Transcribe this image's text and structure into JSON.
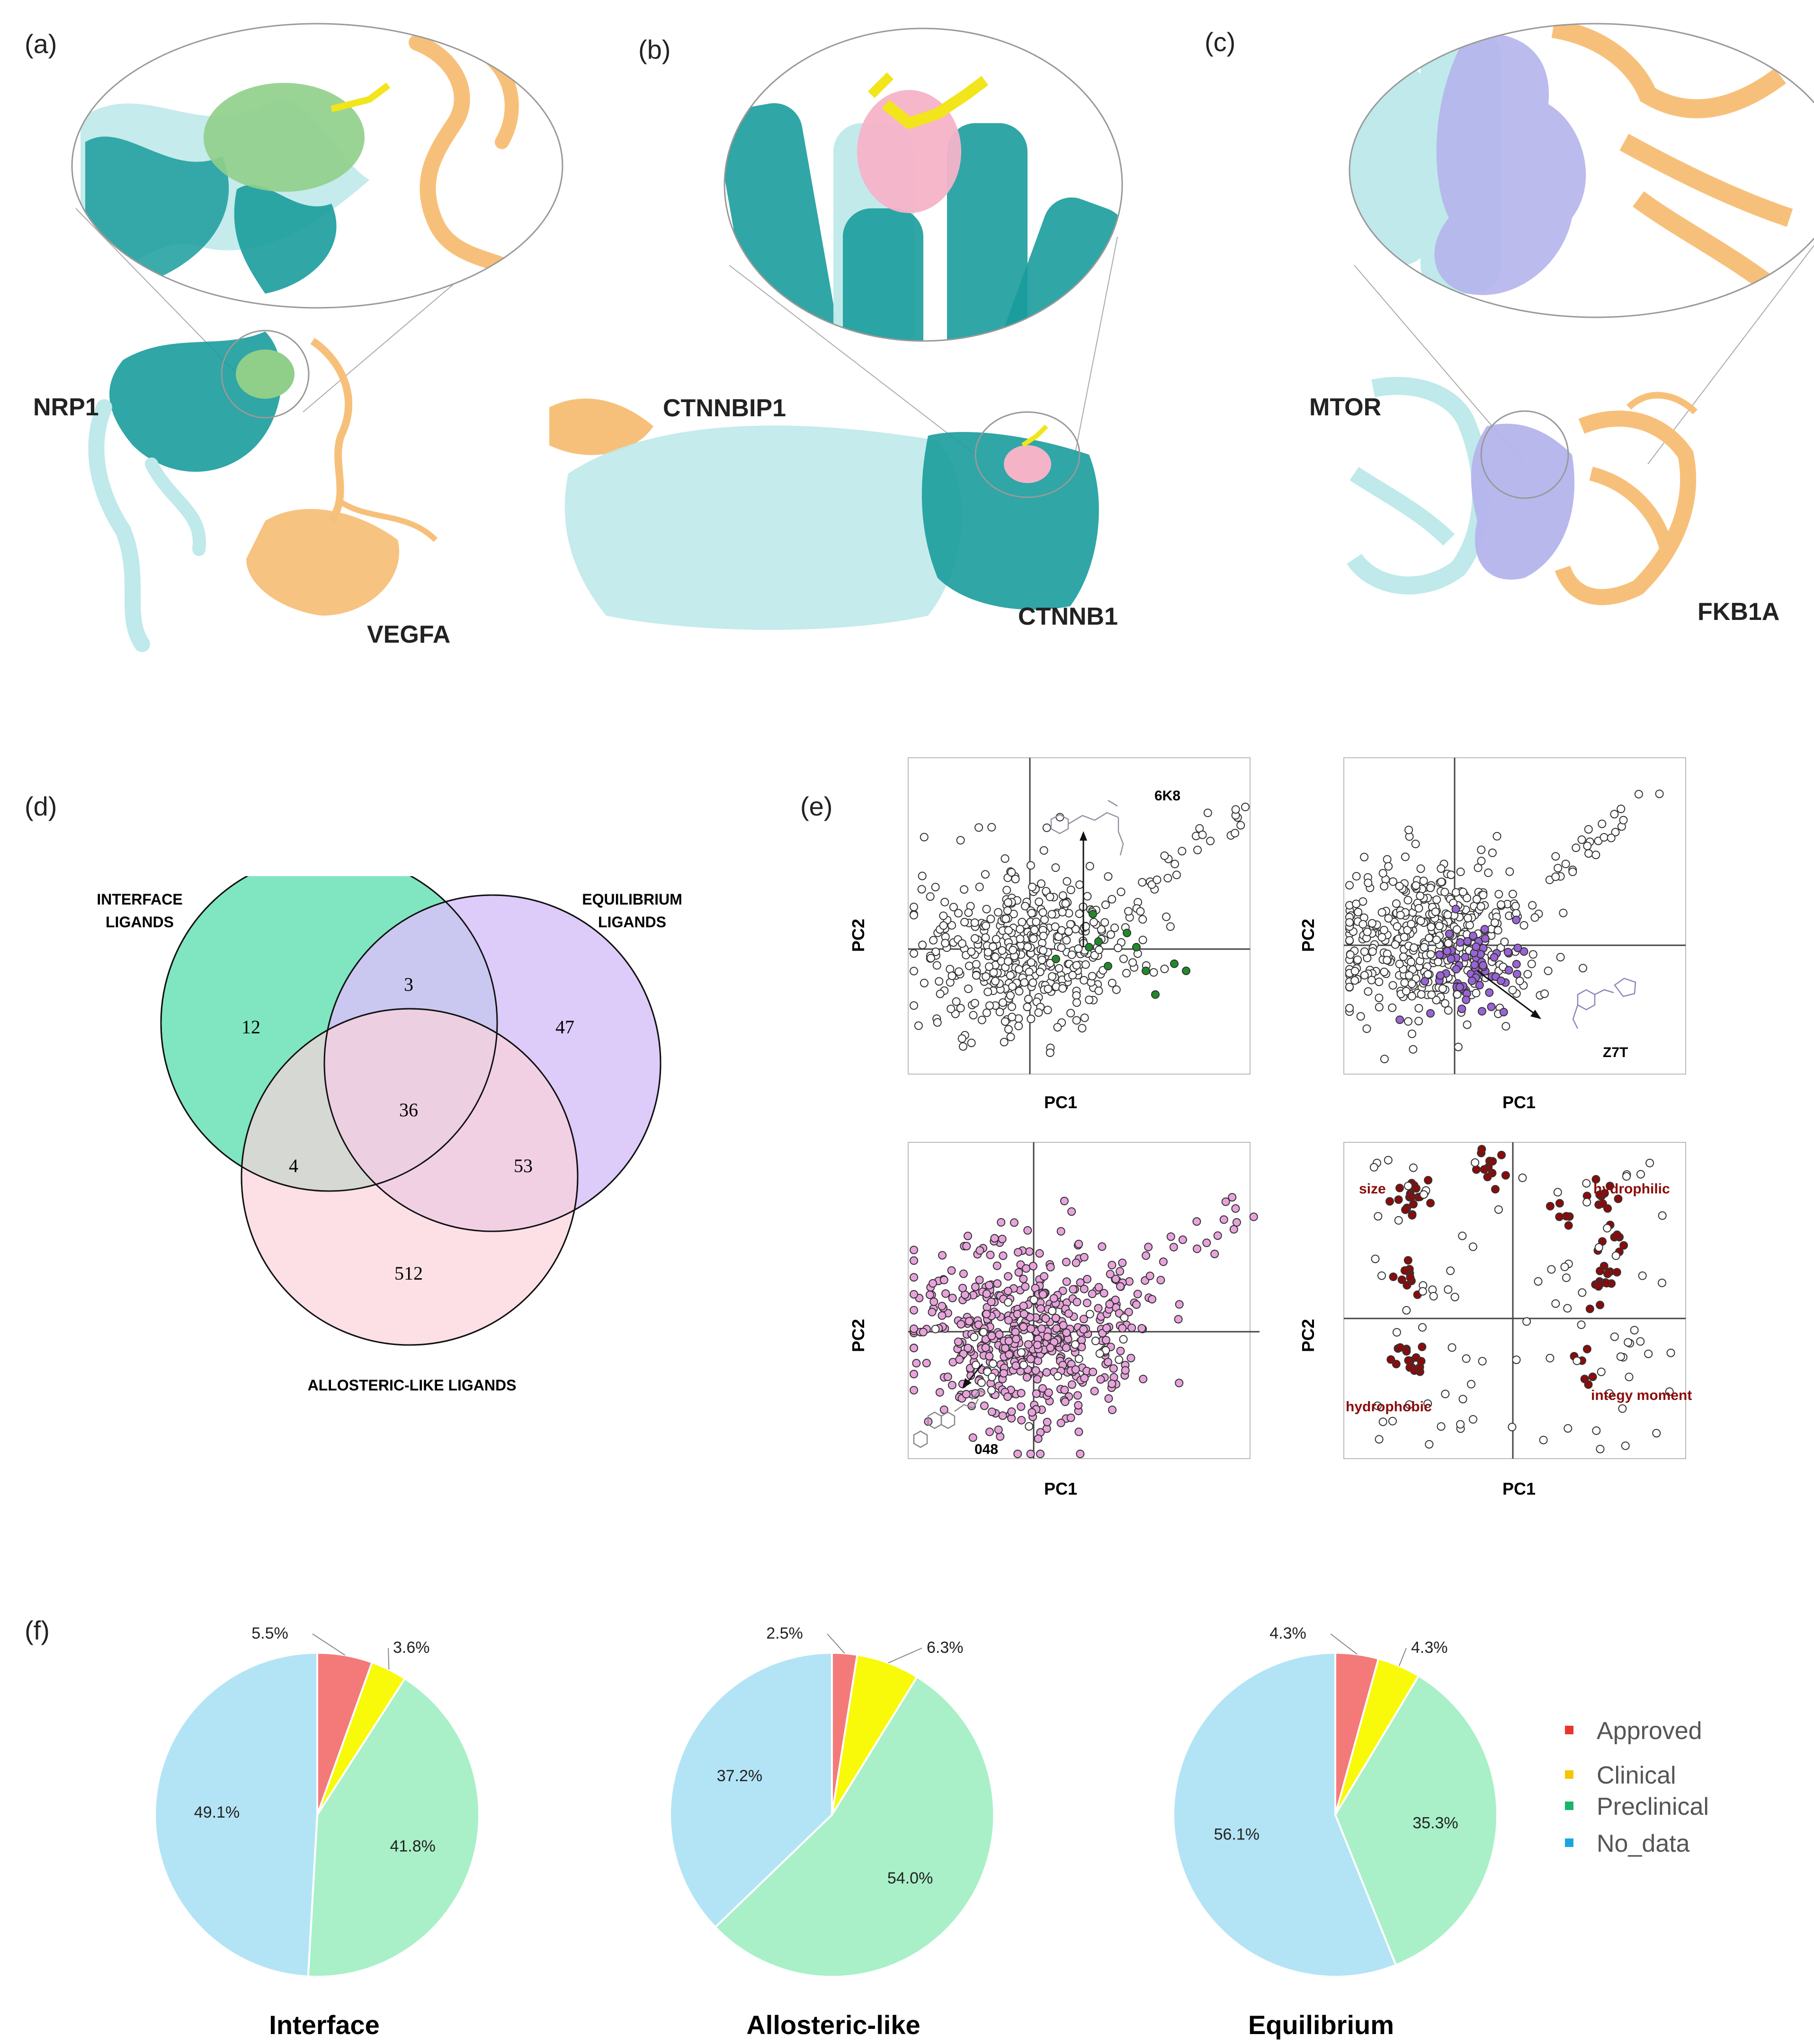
{
  "figure": {
    "panel_labels": [
      "(a)",
      "(b)",
      "(c)",
      "(d)",
      "(e)",
      "(f)"
    ],
    "colors": {
      "teal": "#1a9c9c",
      "light_teal": "#bfe9ea",
      "orange": "#f7c07a",
      "green_pocket": "#8fcf8a",
      "pink_pocket": "#f5b3c8",
      "lavender_pocket": "#b5b4ec",
      "yellow_ligand": "#f2e51b"
    }
  },
  "structures": {
    "a": {
      "partner1": "NRP1",
      "partner2": "VEGFA"
    },
    "b": {
      "partner1": "CTNNBIP1",
      "partner2": "CTNNB1"
    },
    "c": {
      "partner1": "MTOR",
      "partner2": "FKB1A"
    }
  },
  "venn": {
    "sets": [
      {
        "name": "INTERFACE\nLIGANDS",
        "line1": "INTERFACE",
        "line2": "LIGANDS",
        "color": "#7de6c0"
      },
      {
        "name": "EQUILIBRIUM\nLIGANDS",
        "line1": "EQUILIBRIUM",
        "line2": "LIGANDS",
        "color": "#d8c2f9"
      },
      {
        "name": "ALLOSTERIC-LIKE LIGANDS",
        "line1": "ALLOSTERIC-LIKE LIGANDS",
        "color": "#fbd3dc"
      }
    ],
    "counts": {
      "interface_only": "12",
      "interface_equilibrium": "3",
      "equilibrium_only": "47",
      "all_three": "36",
      "interface_allosteric": "4",
      "equilibrium_allosteric": "53",
      "allosteric_only": "512"
    }
  },
  "pca": {
    "xlabel": "PC1",
    "ylabel": "PC2",
    "plots": [
      {
        "id": "interface",
        "highlight_color": "#1f8a2a",
        "ligand": "6K8"
      },
      {
        "id": "equilibrium",
        "highlight_color": "#9a63d6",
        "ligand": "Z7T"
      },
      {
        "id": "allosteric",
        "highlight_color": "#e8a3dd",
        "ligand": "048"
      },
      {
        "id": "loadings",
        "highlight_color": "#8b0b0b",
        "labels": {
          "size": "size",
          "hydrophilic": "hydrophilic",
          "hydrophobic": "hydrophobic",
          "moment": "integy moment"
        }
      }
    ]
  },
  "chart_data": [
    {
      "type": "pie",
      "title": "Interface",
      "categories": [
        "Approved",
        "Clinical",
        "Preclinical",
        "No_data"
      ],
      "values": [
        5.5,
        3.6,
        41.8,
        49.1
      ],
      "labels": [
        "5.5%",
        "3.6%",
        "41.8%",
        "49.1%"
      ]
    },
    {
      "type": "pie",
      "title": "Allosteric-like",
      "categories": [
        "Approved",
        "Clinical",
        "Preclinical",
        "No_data"
      ],
      "values": [
        2.5,
        6.3,
        54.0,
        37.2
      ],
      "labels": [
        "2.5%",
        "6.3%",
        "54.0%",
        "37.2%"
      ]
    },
    {
      "type": "pie",
      "title": "Equilibrium",
      "categories": [
        "Approved",
        "Clinical",
        "Preclinical",
        "No_data"
      ],
      "values": [
        4.3,
        4.3,
        35.3,
        56.1
      ],
      "labels": [
        "4.3%",
        "4.3%",
        "35.3%",
        "56.1%"
      ]
    }
  ],
  "pie_legend": {
    "items": [
      {
        "label": "Approved",
        "color": "#f47a7a",
        "marker": "#e8362f"
      },
      {
        "label": "Clinical",
        "color": "#f9f90a",
        "marker": "#f5c600"
      },
      {
        "label": "Preclinical",
        "color": "#a9f0c8",
        "marker": "#19b56b"
      },
      {
        "label": "No_data",
        "color": "#b3e4f5",
        "marker": "#19a7e0"
      }
    ]
  }
}
